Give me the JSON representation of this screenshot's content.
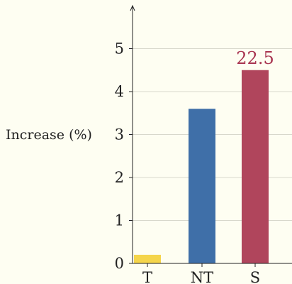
{
  "chart_data": {
    "type": "bar",
    "categories": [
      "T",
      "NT",
      "S"
    ],
    "values": [
      0.2,
      3.6,
      4.5
    ],
    "colors": [
      "#f5d54b",
      "#3f6fa8",
      "#b0455c"
    ],
    "data_labels": [
      "",
      "",
      "22.5"
    ],
    "data_label_color": "#a8344f",
    "ylabel": "Increase (%)",
    "xlabel": "",
    "ylim": [
      0,
      5.8
    ],
    "yticks": [
      0,
      1,
      2,
      3,
      4,
      5
    ],
    "grid": true,
    "grid_color": "#d8d8cc",
    "background": "#fefef2"
  }
}
